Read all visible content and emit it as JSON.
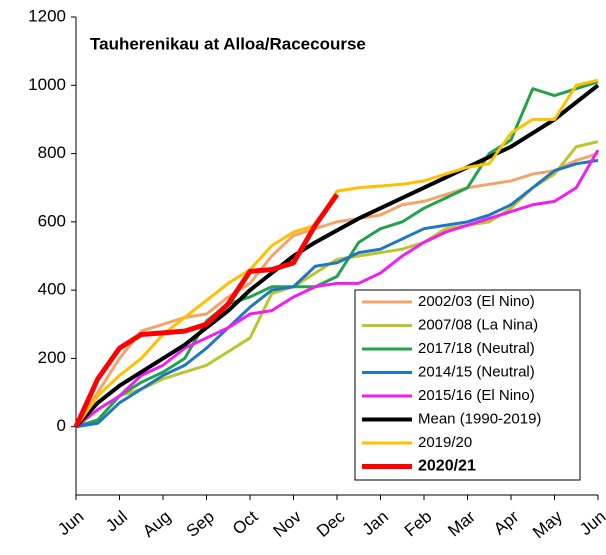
{
  "chart_data": {
    "type": "line",
    "title": "Tauherenikau at Alloa/Racecourse",
    "x": [
      0,
      0.5,
      1,
      1.5,
      2,
      2.5,
      3,
      3.5,
      4,
      4.5,
      5,
      5.5,
      6,
      6.5,
      7,
      7.5,
      8,
      8.5,
      9,
      9.5,
      10,
      10.5,
      11,
      11.5,
      12
    ],
    "xlim": [
      0,
      12
    ],
    "xticks": [
      {
        "value": 0,
        "label": "Jun"
      },
      {
        "value": 1,
        "label": "Jul"
      },
      {
        "value": 2,
        "label": "Aug"
      },
      {
        "value": 3,
        "label": "Sep"
      },
      {
        "value": 4,
        "label": "Oct"
      },
      {
        "value": 5,
        "label": "Nov"
      },
      {
        "value": 6,
        "label": "Dec"
      },
      {
        "value": 7,
        "label": "Jan"
      },
      {
        "value": 8,
        "label": "Feb"
      },
      {
        "value": 9,
        "label": "Mar"
      },
      {
        "value": 10,
        "label": "Apr"
      },
      {
        "value": 11,
        "label": "May"
      },
      {
        "value": 12,
        "label": "Jun"
      }
    ],
    "ylim": [
      -200,
      1200
    ],
    "yticks": [
      0,
      200,
      400,
      600,
      800,
      1000,
      1200
    ],
    "grid": false,
    "legend": "lower right",
    "series": [
      {
        "name": "2002/03 (El Nino)",
        "color": "#f4a46a",
        "line_width": 3,
        "values": [
          0,
          100,
          200,
          280,
          300,
          320,
          330,
          380,
          420,
          500,
          560,
          580,
          600,
          610,
          620,
          650,
          660,
          680,
          700,
          710,
          720,
          740,
          750,
          780,
          800
        ]
      },
      {
        "name": "2007/08 (La Nina)",
        "color": "#bcc52a",
        "line_width": 3,
        "values": [
          0,
          50,
          90,
          110,
          140,
          160,
          180,
          220,
          260,
          390,
          410,
          450,
          490,
          500,
          510,
          520,
          540,
          580,
          590,
          600,
          640,
          700,
          740,
          820,
          835
        ]
      },
      {
        "name": "2017/18 (Neutral)",
        "color": "#22a24a",
        "line_width": 3,
        "values": [
          0,
          20,
          90,
          130,
          160,
          200,
          310,
          360,
          380,
          410,
          410,
          410,
          440,
          540,
          580,
          600,
          640,
          670,
          700,
          800,
          840,
          990,
          970,
          990,
          1010
        ]
      },
      {
        "name": "2014/15 (Neutral)",
        "color": "#1f77c0",
        "line_width": 3,
        "values": [
          0,
          10,
          70,
          110,
          150,
          180,
          230,
          290,
          350,
          400,
          410,
          470,
          480,
          510,
          520,
          550,
          580,
          590,
          600,
          620,
          650,
          700,
          750,
          770,
          780
        ]
      },
      {
        "name": "2015/16 (El Nino)",
        "color": "#f01ef0",
        "line_width": 3,
        "values": [
          0,
          50,
          90,
          150,
          180,
          230,
          260,
          290,
          330,
          340,
          380,
          410,
          420,
          420,
          450,
          500,
          540,
          570,
          590,
          610,
          630,
          650,
          660,
          700,
          810
        ]
      },
      {
        "name": "Mean (1990-2019)",
        "color": "#000000",
        "line_width": 4,
        "values": [
          0,
          70,
          120,
          160,
          200,
          240,
          290,
          340,
          400,
          450,
          500,
          540,
          575,
          610,
          640,
          670,
          700,
          730,
          760,
          790,
          820,
          860,
          900,
          950,
          1000
        ]
      },
      {
        "name": "2019/20",
        "color": "#ffc000",
        "line_width": 3,
        "values": [
          0,
          90,
          150,
          200,
          270,
          320,
          370,
          420,
          460,
          530,
          570,
          590,
          690,
          700,
          705,
          710,
          720,
          740,
          760,
          770,
          860,
          900,
          900,
          1000,
          1015
        ]
      },
      {
        "name": "2020/21",
        "color": "#ff0000",
        "line_width": 5,
        "values": [
          0,
          140,
          230,
          270,
          275,
          280,
          300,
          360,
          455,
          460,
          480,
          590,
          680,
          null,
          null,
          null,
          null,
          null,
          null,
          null,
          null,
          null,
          null,
          null,
          null
        ]
      }
    ]
  }
}
